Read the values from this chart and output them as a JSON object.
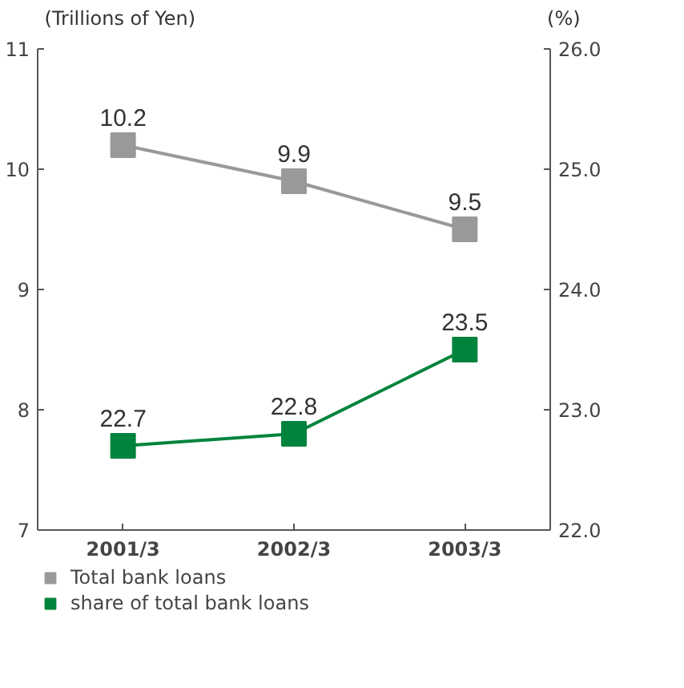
{
  "chart_data": {
    "type": "line",
    "categories": [
      "2001/3",
      "2002/3",
      "2003/3"
    ],
    "ylabel": "(Trillions of Yen)",
    "y2label": "(%)",
    "ylim": [
      7,
      11
    ],
    "yticks": [
      7,
      8,
      9,
      10,
      11
    ],
    "y2lim": [
      22,
      26
    ],
    "y2ticks": [
      {
        "value": 22,
        "label": "22.0"
      },
      {
        "value": 23,
        "label": "23.0"
      },
      {
        "value": 24,
        "label": "24.0"
      },
      {
        "value": 25,
        "label": "25.0"
      },
      {
        "value": 26,
        "label": "26.0"
      }
    ],
    "series": [
      {
        "name": "Total bank loans",
        "color": "#999999",
        "values": [
          10.2,
          9.9,
          9.5
        ]
      },
      {
        "name": "share of total bank loans",
        "color": "#00843d",
        "values": [
          22.7,
          22.8,
          23.5
        ],
        "axis": "y2"
      }
    ],
    "marker": "square",
    "data_labels": true,
    "legend": "bottom",
    "grid": false
  }
}
